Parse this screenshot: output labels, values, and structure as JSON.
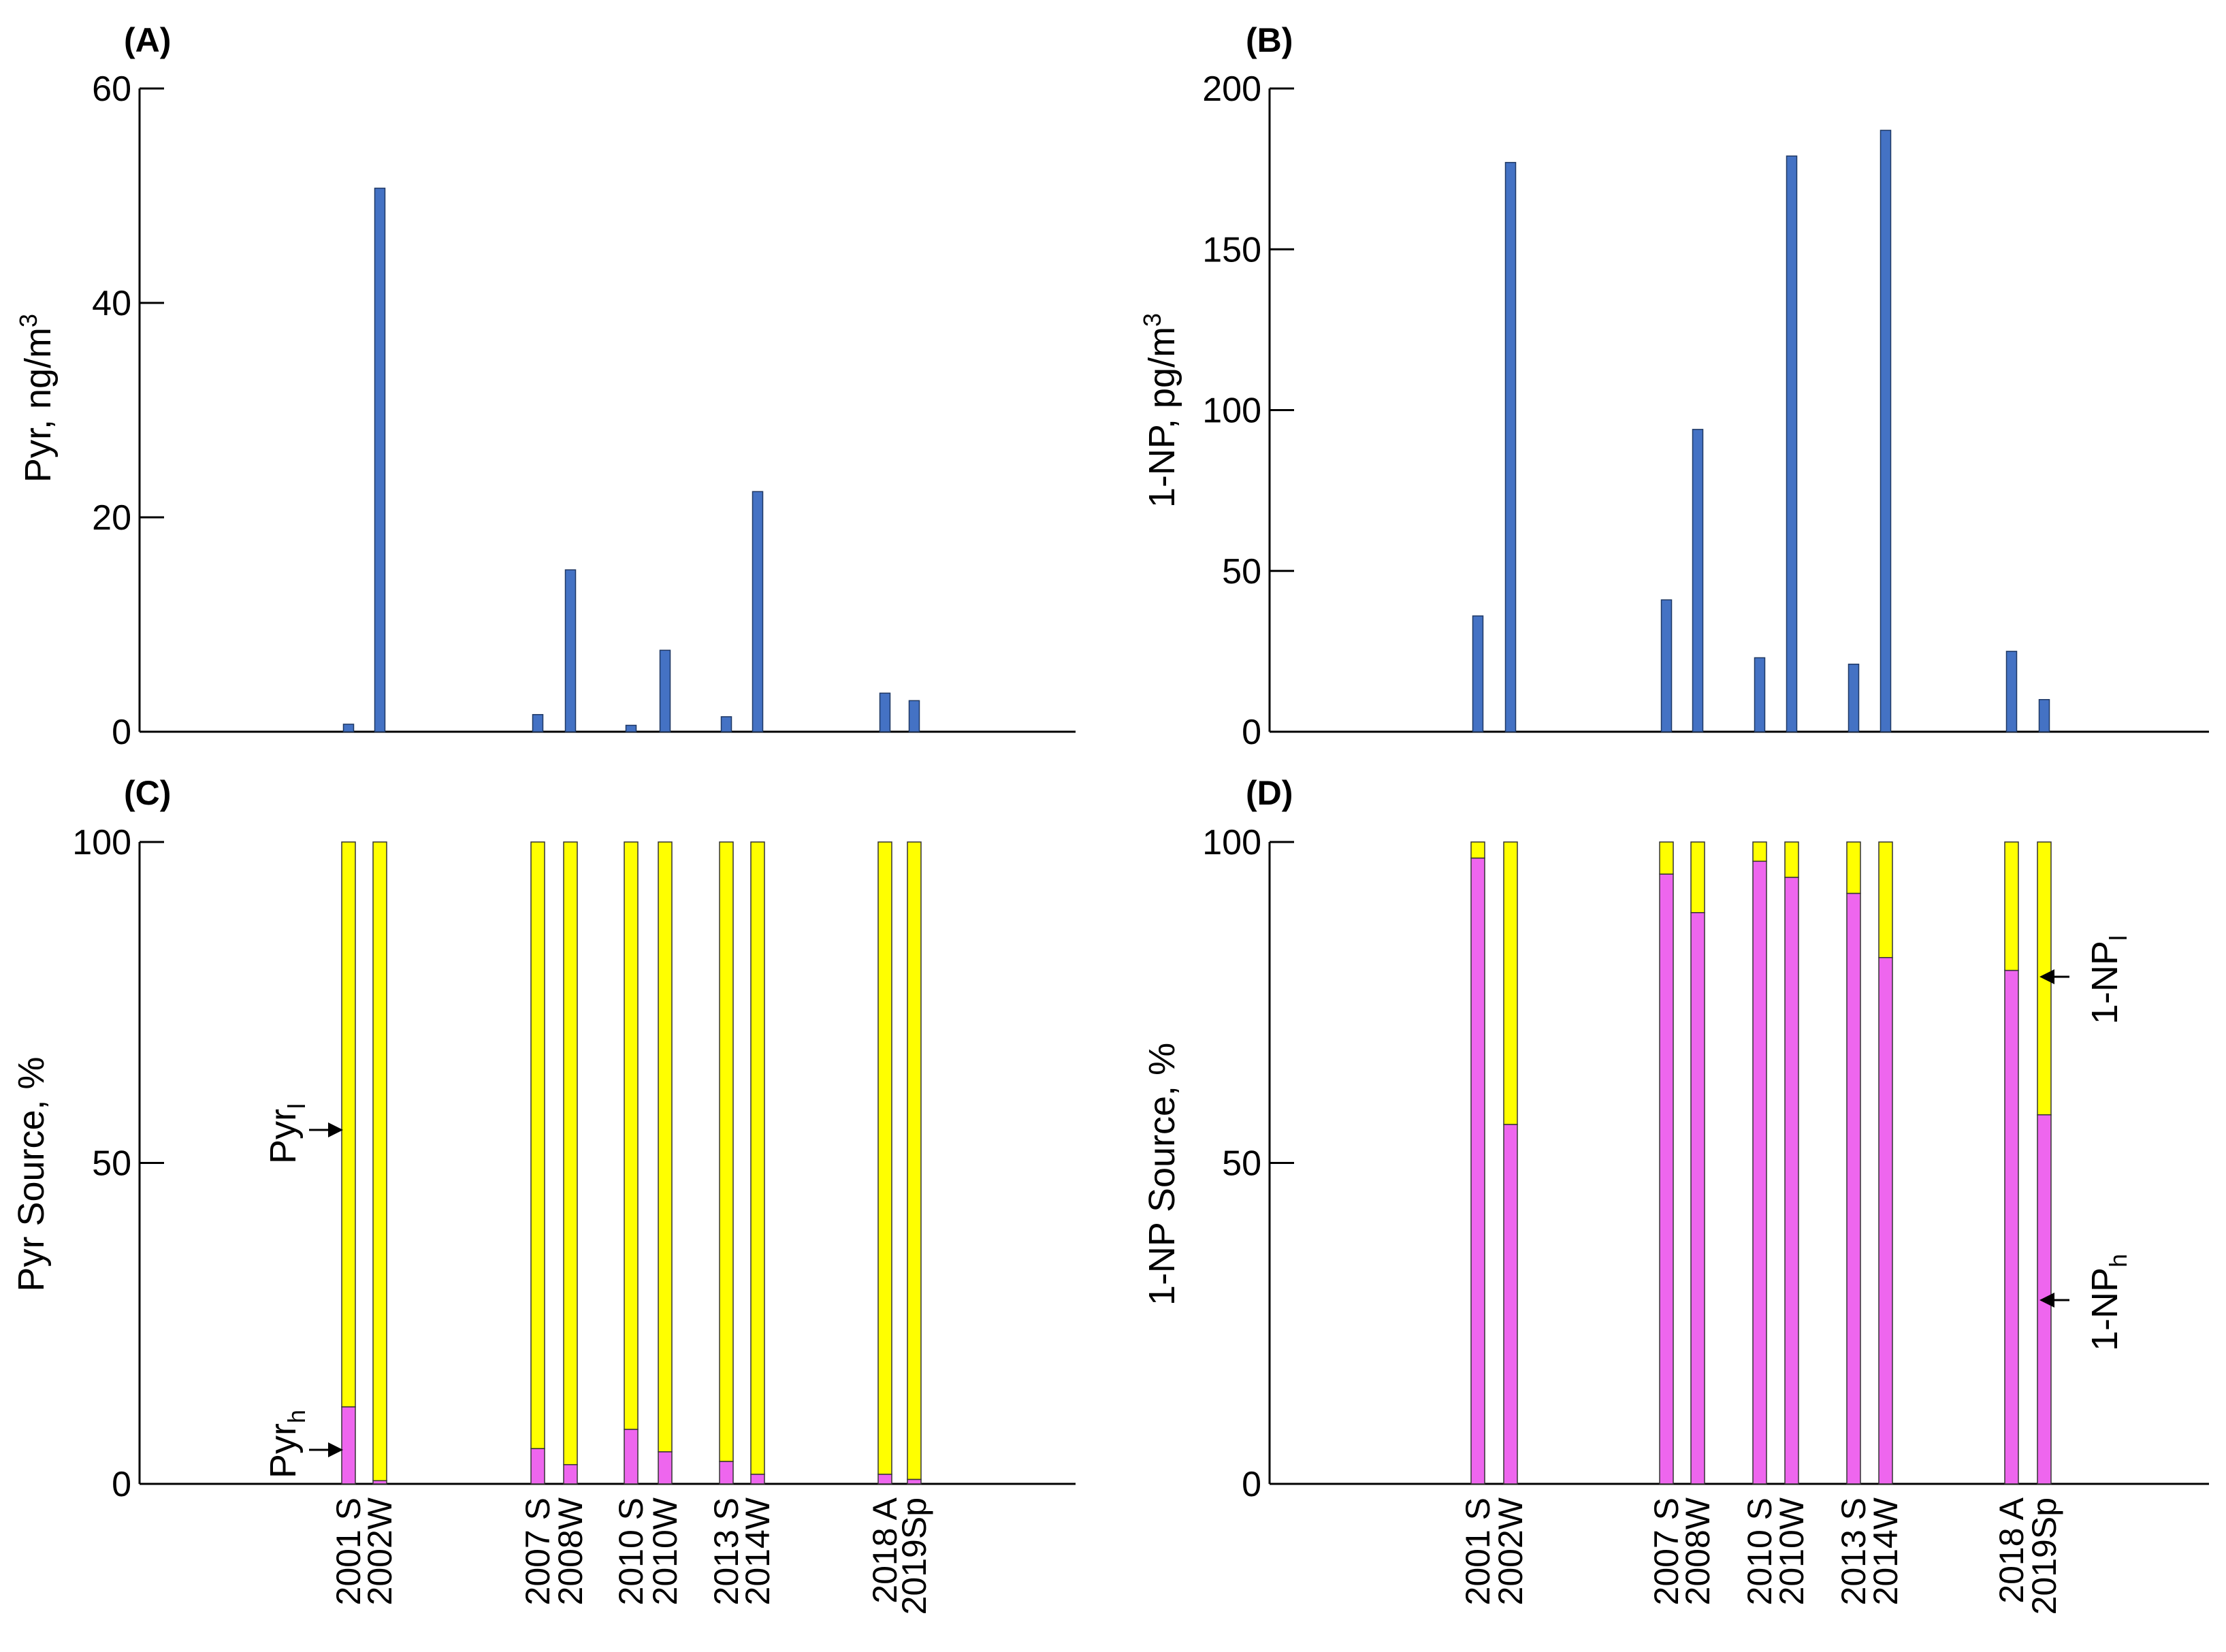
{
  "categories": [
    "2001 S",
    "2002W",
    "2007 S",
    "2008W",
    "2010 S",
    "2010W",
    "2013 S",
    "2014W",
    "2018 A",
    "2019Sp"
  ],
  "colors": {
    "blue": "#4472c4",
    "yellow": "#ffff00",
    "magenta": "#ee66ee",
    "axis": "#000000"
  },
  "chart_data": [
    {
      "panel": "(A)",
      "type": "bar",
      "ylabel_main": "Pyr, ng/m",
      "ylabel_sup": "3",
      "ylim": [
        0,
        60
      ],
      "yticks": [
        0,
        20,
        40,
        60
      ],
      "categories": [
        "2001 S",
        "2002W",
        "2007 S",
        "2008W",
        "2010 S",
        "2010W",
        "2013 S",
        "2014W",
        "2018 A",
        "2019Sp"
      ],
      "values": [
        0.7,
        50.7,
        1.6,
        15.1,
        0.6,
        7.6,
        1.4,
        22.4,
        3.6,
        2.9
      ]
    },
    {
      "panel": "(B)",
      "type": "bar",
      "ylabel_main": "1-NP, pg/m",
      "ylabel_sup": "3",
      "ylim": [
        0,
        200
      ],
      "yticks": [
        0,
        50,
        100,
        150,
        200
      ],
      "categories": [
        "2001 S",
        "2002W",
        "2007 S",
        "2008W",
        "2010 S",
        "2010W",
        "2013 S",
        "2014W",
        "2018 A",
        "2019Sp"
      ],
      "values": [
        36,
        177,
        41,
        94,
        23,
        179,
        21,
        187,
        25,
        10
      ]
    },
    {
      "panel": "(C)",
      "type": "stacked-bar",
      "ylabel": "Pyr Source, %",
      "ylim": [
        0,
        100
      ],
      "yticks": [
        0,
        50,
        100
      ],
      "categories": [
        "2001 S",
        "2002W",
        "2007 S",
        "2008W",
        "2010 S",
        "2010W",
        "2013 S",
        "2014W",
        "2018 A",
        "2019Sp"
      ],
      "series": [
        {
          "name": "Pyr_h",
          "color": "magenta",
          "values": [
            12,
            0.5,
            5.5,
            3,
            8.5,
            5,
            3.5,
            1.5,
            1.5,
            0.7
          ]
        },
        {
          "name": "Pyr_l",
          "color": "yellow",
          "values": [
            88,
            99.5,
            94.5,
            97,
            91.5,
            95,
            96.5,
            98.5,
            98.5,
            99.3
          ]
        }
      ],
      "annotations": [
        {
          "main": "Pyr",
          "sub": "l"
        },
        {
          "main": "Pyr",
          "sub": "h"
        }
      ]
    },
    {
      "panel": "(D)",
      "type": "stacked-bar",
      "ylabel": "1-NP Source, %",
      "ylim": [
        0,
        100
      ],
      "yticks": [
        0,
        50,
        100
      ],
      "categories": [
        "2001 S",
        "2002W",
        "2007 S",
        "2008W",
        "2010 S",
        "2010W",
        "2013 S",
        "2014W",
        "2018 A",
        "2019Sp"
      ],
      "series": [
        {
          "name": "1-NP_h",
          "color": "magenta",
          "values": [
            97.5,
            56,
            95,
            89,
            97,
            94.5,
            92,
            82,
            80,
            57.5
          ]
        },
        {
          "name": "1-NP_l",
          "color": "yellow",
          "values": [
            2.5,
            44,
            5,
            11,
            3,
            5.5,
            8,
            18,
            20,
            42.5
          ]
        }
      ],
      "annotations": [
        {
          "main": "1-NP",
          "sub": "l"
        },
        {
          "main": "1-NP",
          "sub": "h"
        }
      ]
    }
  ]
}
